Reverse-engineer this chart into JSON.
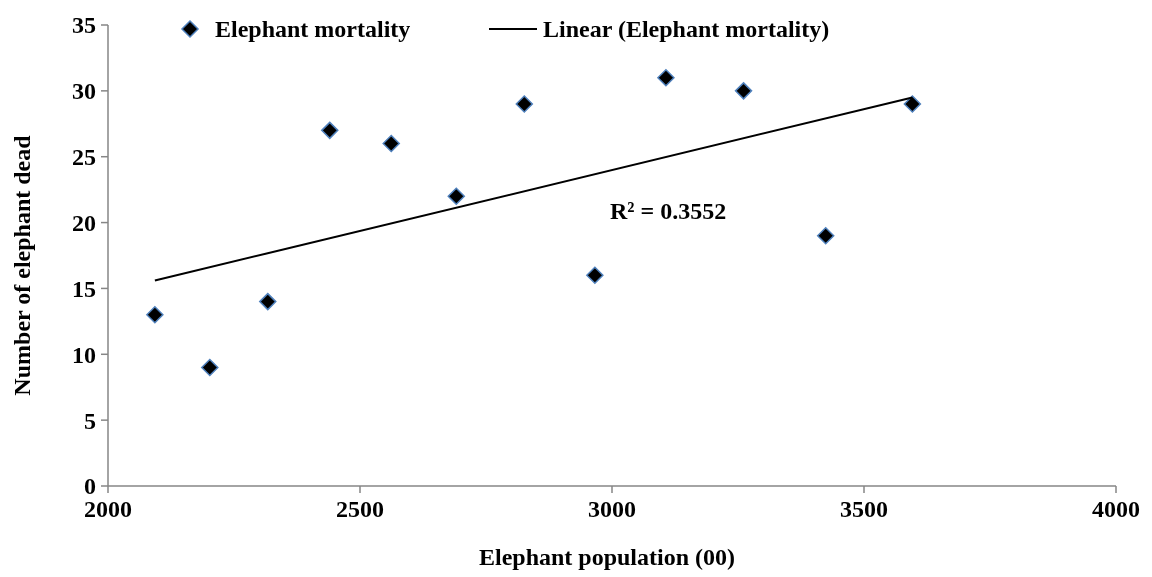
{
  "chart_data": {
    "type": "scatter",
    "xlabel": "Elephant population (00)",
    "ylabel": "Number of elephant dead",
    "xlim": [
      2000,
      4000
    ],
    "xticks": [
      2000,
      2500,
      3000,
      3500,
      4000
    ],
    "ylim": [
      0,
      35
    ],
    "yticks": [
      0,
      5,
      10,
      15,
      20,
      25,
      30,
      35
    ],
    "grid": false,
    "legend": "top",
    "series": [
      {
        "name": "Elephant mortality",
        "marker": "diamond",
        "color": "#000000",
        "x": [
          2093,
          2202,
          2317,
          2440,
          2562,
          2691,
          2826,
          2966,
          3107,
          3261,
          3424,
          3596
        ],
        "values": [
          13,
          9,
          14,
          27,
          26,
          22,
          29,
          16,
          31,
          30,
          19,
          29
        ]
      },
      {
        "name": "Linear (Elephant mortality)",
        "type": "line",
        "color": "#000000",
        "line_style": "solid",
        "x": [
          2093,
          3596
        ],
        "values": [
          15.6,
          29.5
        ]
      }
    ],
    "annotations": [
      "R² = 0.3552"
    ]
  }
}
